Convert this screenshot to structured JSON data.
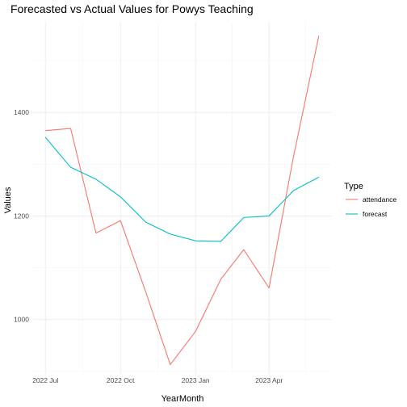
{
  "chart_data": {
    "type": "line",
    "title": "Forecasted vs Actual Values for Powys Teaching",
    "xlabel": "YearMonth",
    "ylabel": "Values",
    "x": [
      "2022-07",
      "2022-08",
      "2022-09",
      "2022-10",
      "2022-11",
      "2022-12",
      "2023-01",
      "2023-02",
      "2023-03",
      "2023-04",
      "2023-05",
      "2023-06"
    ],
    "xticks": [
      {
        "value": "2022-07",
        "label": "2022 Jul"
      },
      {
        "value": "2022-10",
        "label": "2022 Oct"
      },
      {
        "value": "2023-01",
        "label": "2023 Jan"
      },
      {
        "value": "2023-04",
        "label": "2023 Apr"
      }
    ],
    "yticks": [
      1000,
      1200,
      1400
    ],
    "ylim": [
      895,
      1575
    ],
    "xlim": [
      "2022-06-15",
      "2023-06-17"
    ],
    "grid": true,
    "legend": {
      "title": "Type",
      "placement": "right"
    },
    "series": [
      {
        "name": "attendance",
        "color": "#F8766D",
        "values": [
          1365,
          1369,
          1167,
          1191,
          1053,
          913,
          977,
          1078,
          1135,
          1061,
          1315,
          1548
        ]
      },
      {
        "name": "forecast",
        "color": "#00BFC4",
        "values": [
          1352,
          1294,
          1271,
          1237,
          1188,
          1165,
          1152,
          1151,
          1197,
          1200,
          1249,
          1275
        ]
      }
    ]
  }
}
